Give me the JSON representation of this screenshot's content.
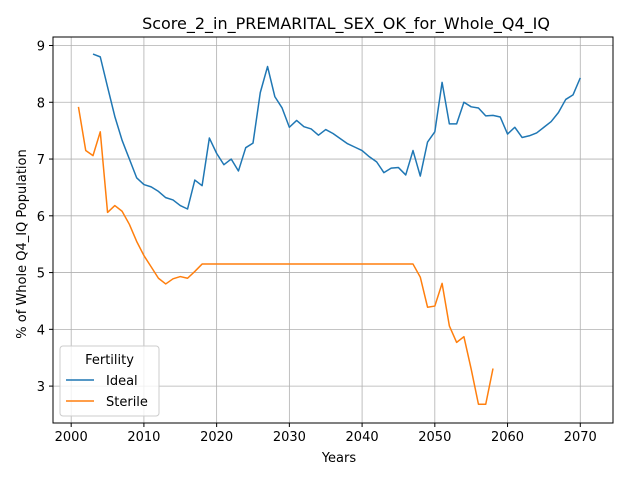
{
  "chart_data": {
    "type": "line",
    "title": "Score_2_in_PREMARITAL_SEX_OK_for_Whole_Q4_IQ",
    "xlabel": "Years",
    "ylabel": "% of Whole Q4_IQ Population",
    "xlim": [
      1997.5,
      2074.5
    ],
    "ylim": [
      2.35,
      9.15
    ],
    "xticks": [
      2000,
      2010,
      2020,
      2030,
      2040,
      2050,
      2060,
      2070
    ],
    "yticks": [
      3,
      4,
      5,
      6,
      7,
      8,
      9
    ],
    "grid": true,
    "legend": {
      "title": "Fertility",
      "placement": "lower-left"
    },
    "colors": {
      "Ideal": "#1f77b4",
      "Sterile": "#ff7f0e"
    },
    "series": [
      {
        "name": "Ideal",
        "x": [
          2003,
          2004,
          2005,
          2006,
          2007,
          2008,
          2009,
          2010,
          2011,
          2012,
          2013,
          2014,
          2015,
          2016,
          2017,
          2018,
          2019,
          2020,
          2021,
          2022,
          2023,
          2024,
          2025,
          2026,
          2027,
          2028,
          2029,
          2030,
          2031,
          2032,
          2033,
          2034,
          2035,
          2036,
          2037,
          2038,
          2039,
          2040,
          2041,
          2042,
          2043,
          2044,
          2045,
          2046,
          2047,
          2048,
          2049,
          2050,
          2051,
          2052,
          2053,
          2054,
          2055,
          2056,
          2057,
          2058,
          2059,
          2060,
          2061,
          2062,
          2063,
          2064,
          2065,
          2066,
          2067,
          2068,
          2069,
          2070
        ],
        "values": [
          8.85,
          8.8,
          8.27,
          7.75,
          7.33,
          7.0,
          6.67,
          6.55,
          6.51,
          6.43,
          6.32,
          6.28,
          6.18,
          6.12,
          6.63,
          6.53,
          7.37,
          7.1,
          6.9,
          7.0,
          6.79,
          7.2,
          7.28,
          8.17,
          8.63,
          8.1,
          7.9,
          7.56,
          7.68,
          7.57,
          7.53,
          7.42,
          7.52,
          7.45,
          7.36,
          7.27,
          7.21,
          7.15,
          7.04,
          6.95,
          6.76,
          6.84,
          6.85,
          6.72,
          7.15,
          6.7,
          7.3,
          7.48,
          8.35,
          7.62,
          7.62,
          8.0,
          7.92,
          7.9,
          7.76,
          7.77,
          7.74,
          7.44,
          7.56,
          7.38,
          7.41,
          7.46,
          7.56,
          7.66,
          7.82,
          8.05,
          8.13,
          8.43
        ]
      },
      {
        "name": "Sterile",
        "x": [
          2001,
          2002,
          2003,
          2004,
          2005,
          2006,
          2007,
          2008,
          2009,
          2010,
          2011,
          2012,
          2013,
          2014,
          2015,
          2016,
          2017,
          2018,
          2019,
          2020,
          2021,
          2022,
          2023,
          2024,
          2025,
          2026,
          2027,
          2028,
          2029,
          2030,
          2031,
          2032,
          2033,
          2034,
          2035,
          2036,
          2037,
          2038,
          2039,
          2040,
          2041,
          2042,
          2043,
          2044,
          2045,
          2046,
          2047,
          2048,
          2049,
          2050,
          2051,
          2052,
          2053,
          2054,
          2055,
          2056,
          2057,
          2058
        ],
        "values": [
          7.92,
          7.15,
          7.06,
          7.48,
          6.06,
          6.18,
          6.08,
          5.85,
          5.55,
          5.3,
          5.1,
          4.9,
          4.8,
          4.89,
          4.93,
          4.9,
          5.02,
          5.15,
          5.15,
          5.15,
          5.15,
          5.15,
          5.15,
          5.15,
          5.15,
          5.15,
          5.15,
          5.15,
          5.15,
          5.15,
          5.15,
          5.15,
          5.15,
          5.15,
          5.15,
          5.15,
          5.15,
          5.15,
          5.15,
          5.15,
          5.15,
          5.15,
          5.15,
          5.15,
          5.15,
          5.15,
          5.15,
          4.92,
          4.39,
          4.41,
          4.81,
          4.06,
          3.77,
          3.87,
          3.3,
          2.68,
          2.68,
          3.31
        ]
      }
    ]
  }
}
